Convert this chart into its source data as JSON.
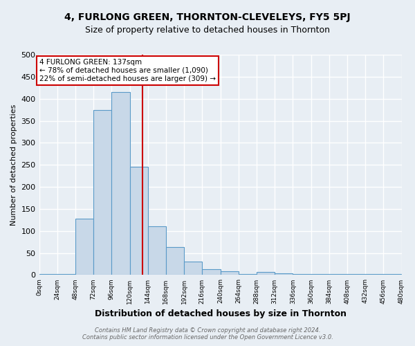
{
  "title": "4, FURLONG GREEN, THORNTON-CLEVELEYS, FY5 5PJ",
  "subtitle": "Size of property relative to detached houses in Thornton",
  "xlabel": "Distribution of detached houses by size in Thornton",
  "ylabel": "Number of detached properties",
  "bar_color": "#c8d8e8",
  "bar_edge_color": "#5a9ac8",
  "bins": [
    0,
    24,
    48,
    72,
    96,
    120,
    144,
    168,
    192,
    216,
    240,
    264,
    288,
    312,
    336,
    360,
    384,
    408,
    432,
    456,
    480
  ],
  "counts": [
    3,
    3,
    128,
    375,
    415,
    245,
    110,
    63,
    30,
    13,
    8,
    3,
    7,
    4,
    3,
    2,
    2,
    2,
    2,
    3
  ],
  "property_size": 137,
  "vline_color": "#cc0000",
  "annotation_text": "4 FURLONG GREEN: 137sqm\n← 78% of detached houses are smaller (1,090)\n22% of semi-detached houses are larger (309) →",
  "annotation_box_color": "#ffffff",
  "annotation_box_edge": "#cc0000",
  "footnote": "Contains HM Land Registry data © Crown copyright and database right 2024.\nContains public sector information licensed under the Open Government Licence v3.0.",
  "ylim": [
    0,
    500
  ],
  "background_color": "#e8eef4",
  "grid_color": "#ffffff",
  "title_fontsize": 10,
  "subtitle_fontsize": 9,
  "xlabel_fontsize": 9,
  "ylabel_fontsize": 8
}
